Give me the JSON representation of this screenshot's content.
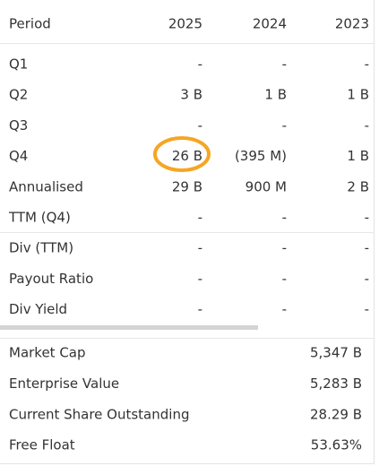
{
  "table": {
    "header": [
      "Period",
      "2025",
      "2024",
      "2023"
    ],
    "rows": [
      [
        "Q1",
        "-",
        "-",
        "-"
      ],
      [
        "Q2",
        "3 B",
        "1 B",
        "1 B"
      ],
      [
        "Q3",
        "-",
        "-",
        "-"
      ],
      [
        "Q4",
        "26 B",
        "(395 M)",
        "1 B"
      ],
      [
        "Annualised",
        "29 B",
        "900 M",
        "2 B"
      ],
      [
        "TTM (Q4)",
        "-",
        "-",
        "-"
      ],
      [
        "Div (TTM)",
        "-",
        "-",
        "-"
      ],
      [
        "Payout Ratio",
        "-",
        "-",
        "-"
      ],
      [
        "Div Yield",
        "-",
        "-",
        "-"
      ]
    ]
  },
  "summary": {
    "rows": [
      [
        "Market Cap",
        "5,347 B"
      ],
      [
        "Enterprise Value",
        "5,283 B"
      ],
      [
        "Current Share Outstanding",
        "28.29 B"
      ],
      [
        "Free Float",
        "53.63%"
      ]
    ]
  }
}
